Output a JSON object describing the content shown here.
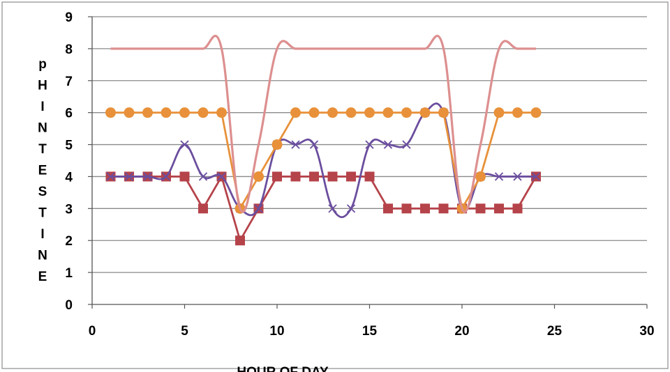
{
  "chart_data": {
    "type": "line",
    "title": "",
    "xlabel": "HOUR OF DAY",
    "ylabel": "pHINTESTINE",
    "xlim": [
      0,
      30
    ],
    "ylim": [
      0,
      9
    ],
    "xticks": [
      "0",
      "5",
      "10",
      "15",
      "20",
      "25",
      "30"
    ],
    "yticks": [
      "0",
      "1",
      "2",
      "3",
      "4",
      "5",
      "6",
      "7",
      "8",
      "9"
    ],
    "grid": "horizontal",
    "legend": "none",
    "x": [
      1,
      2,
      3,
      4,
      5,
      6,
      7,
      8,
      9,
      10,
      11,
      12,
      13,
      14,
      15,
      16,
      17,
      18,
      19,
      20,
      21,
      22,
      23,
      24
    ],
    "series": [
      {
        "color": "#b5434a",
        "marker": "square",
        "smooth": false,
        "values": [
          4,
          4,
          4,
          4,
          4,
          3,
          4,
          2,
          3,
          4,
          4,
          4,
          4,
          4,
          4,
          3,
          3,
          3,
          3,
          3,
          3,
          3,
          3,
          4
        ]
      },
      {
        "color": "#6b4e9e",
        "marker": "x",
        "smooth": true,
        "values": [
          4,
          4,
          4,
          4,
          5,
          4,
          4,
          3,
          3,
          5,
          5,
          5,
          3,
          3,
          5,
          5,
          5,
          6,
          6,
          3,
          4,
          4,
          4,
          4
        ]
      },
      {
        "color": "#e8913a",
        "marker": "circle",
        "smooth": false,
        "values": [
          6,
          6,
          6,
          6,
          6,
          6,
          6,
          3,
          4,
          5,
          6,
          6,
          6,
          6,
          6,
          6,
          6,
          6,
          6,
          3,
          4,
          6,
          6,
          6
        ]
      },
      {
        "color": "#dd8f8f",
        "marker": "none",
        "smooth": true,
        "values": [
          8,
          8,
          8,
          8,
          8,
          8,
          8,
          3,
          5,
          8,
          8,
          8,
          8,
          8,
          8,
          8,
          8,
          8,
          8,
          3,
          5,
          8,
          8,
          8
        ]
      }
    ]
  }
}
